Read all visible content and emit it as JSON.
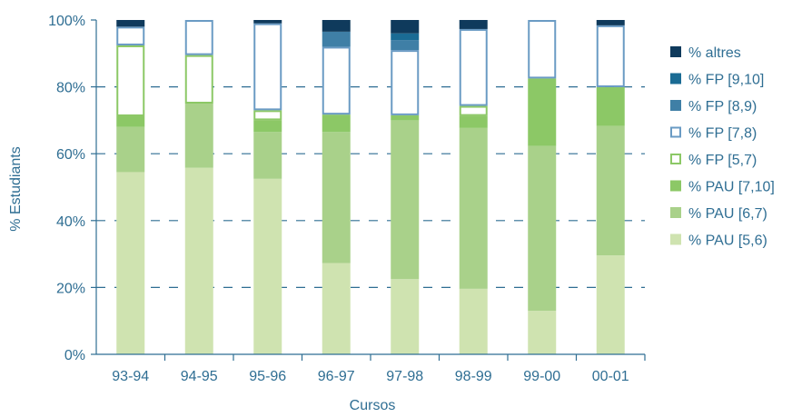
{
  "chart_data": {
    "type": "bar",
    "stacked": true,
    "title": "",
    "xlabel": "Cursos",
    "ylabel": "% Estudiants",
    "ylim": [
      0,
      100
    ],
    "yticks": [
      "0%",
      "20%",
      "40%",
      "60%",
      "80%",
      "100%"
    ],
    "grid": "dashed horizontal lines",
    "legend_position": "right",
    "categories": [
      "93-94",
      "94-95",
      "95-96",
      "96-97",
      "97-98",
      "98-99",
      "99-00",
      "00-01"
    ],
    "series": [
      {
        "name": "% PAU [5,6)",
        "color": "#cfe3b0",
        "style": "filled",
        "values": [
          54.5,
          55.8,
          52.5,
          27.3,
          22.5,
          19.6,
          13.0,
          29.6
        ]
      },
      {
        "name": "% PAU [6,7)",
        "color": "#a9d18a",
        "style": "filled",
        "values": [
          13.5,
          19.2,
          14.0,
          39.2,
          47.5,
          48.1,
          49.3,
          38.7
        ]
      },
      {
        "name": "% PAU [7,10]",
        "color": "#8cc866",
        "style": "filled",
        "values": [
          3.2,
          0.0,
          3.5,
          5.2,
          1.5,
          3.6,
          20.2,
          11.6
        ]
      },
      {
        "name": "% FP [5,7)",
        "color": "#8cc866",
        "style": "outline",
        "values": [
          21.2,
          14.5,
          3.0,
          0.0,
          0.0,
          3.0,
          0.0,
          0.0
        ]
      },
      {
        "name": "% FP [7,8)",
        "color": "#6a9bc4",
        "style": "outline",
        "values": [
          5.6,
          10.5,
          26.0,
          20.3,
          19.5,
          23.0,
          17.5,
          18.5
        ]
      },
      {
        "name": "% FP [8,9)",
        "color": "#3f7fa6",
        "style": "filled",
        "values": [
          0.0,
          0.0,
          0.0,
          4.5,
          3.0,
          0.0,
          0.0,
          0.0
        ]
      },
      {
        "name": "% FP [9,10]",
        "color": "#1a6b94",
        "style": "filled",
        "values": [
          0.0,
          0.0,
          0.0,
          0.0,
          2.0,
          0.0,
          0.0,
          0.0
        ]
      },
      {
        "name": "% altres",
        "color": "#0f3a5c",
        "style": "filled",
        "values": [
          2.0,
          0.0,
          1.0,
          3.5,
          4.0,
          2.7,
          0.0,
          1.6
        ]
      }
    ]
  }
}
